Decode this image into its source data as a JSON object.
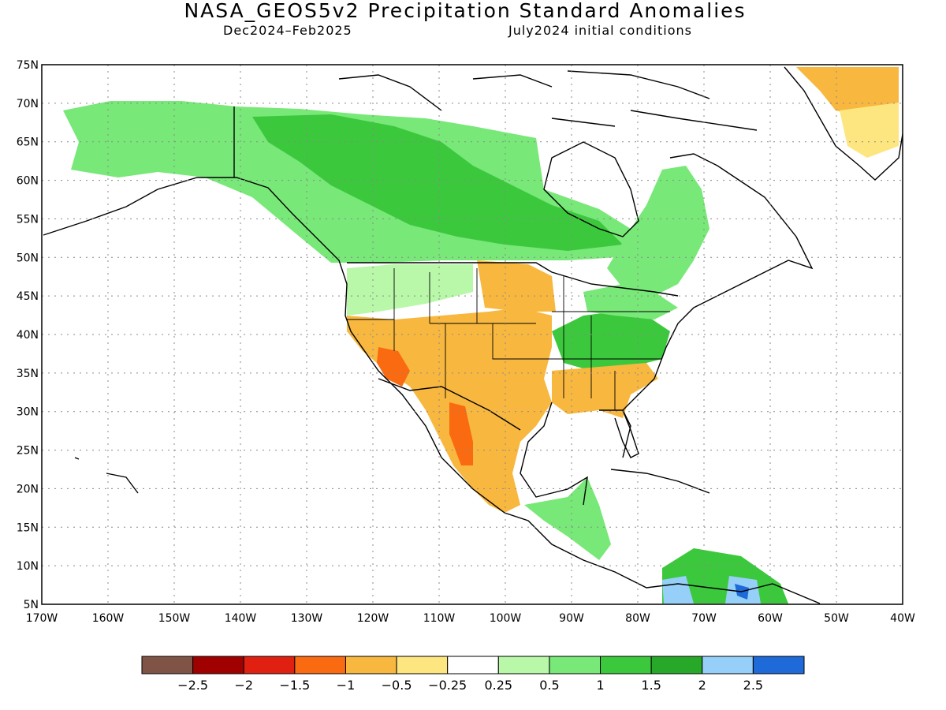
{
  "title": "NASA_GEOS5v2 Precipitation Standard Anomalies",
  "subtitle_left": "Dec2024–Feb2025",
  "subtitle_right": "July2024 initial conditions",
  "map": {
    "lon_range": [
      -170,
      -40
    ],
    "lat_range": [
      5,
      75
    ],
    "lat_labels": [
      "75N",
      "70N",
      "65N",
      "60N",
      "55N",
      "50N",
      "45N",
      "40N",
      "35N",
      "30N",
      "25N",
      "20N",
      "15N",
      "10N",
      "5N"
    ],
    "lon_labels": [
      "170W",
      "160W",
      "150W",
      "140W",
      "130W",
      "120W",
      "110W",
      "100W",
      "90W",
      "80W",
      "70W",
      "60W",
      "50W",
      "40W"
    ],
    "grid": true
  },
  "colorbar": {
    "colors": [
      "#7f5446",
      "#a00000",
      "#e02010",
      "#fa6a10",
      "#f8b840",
      "#fde680",
      "#ffffff",
      "#b8f8a8",
      "#78e878",
      "#3cc83c",
      "#28a828",
      "#96d0f8",
      "#1e6ad8"
    ],
    "labels": [
      "−2.5",
      "−2",
      "−1.5",
      "−1",
      "−0.5",
      "−0.25",
      "0.25",
      "0.5",
      "1",
      "1.5",
      "2",
      "2.5"
    ]
  }
}
